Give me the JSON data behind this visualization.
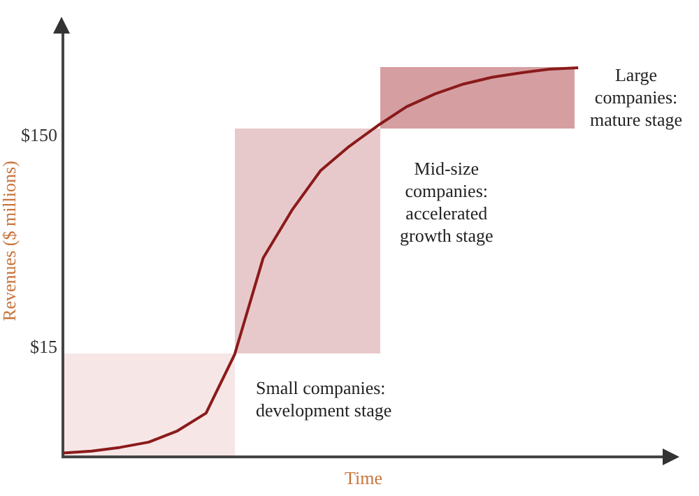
{
  "chart_data": {
    "type": "line",
    "xlabel": "Time",
    "ylabel": "Revenues ($ millions)",
    "log": "y",
    "grid": false,
    "legend": false,
    "marker": "none",
    "line_style": "solid",
    "tick_labels": "y",
    "categories": [
      null,
      null,
      null,
      null,
      null,
      null,
      null,
      null,
      null,
      null,
      null,
      null,
      null,
      null,
      null,
      null,
      null,
      null,
      null,
      null,
      null,
      null
    ],
    "series": [
      {
        "color": "#8b1a1a",
        "values": [
          4.8,
          4.9,
          5.1,
          5.4,
          6.1,
          7.4,
          14,
          40,
          67,
          103,
          134,
          168,
          206,
          237,
          264,
          284,
          298,
          310,
          315,
          null,
          null,
          null
        ]
      }
    ],
    "ylim": [
      4.6,
      500
    ],
    "yticks": [
      {
        "value": 15,
        "label": "$15"
      },
      {
        "value": 150,
        "label": "$150"
      }
    ],
    "annotations": [
      "Small companies:\ndevelopment stage",
      "Mid-size\ncompanies:\naccelerated\ngrowth stage",
      "Large\ncompanies:\nmature stage"
    ]
  }
}
